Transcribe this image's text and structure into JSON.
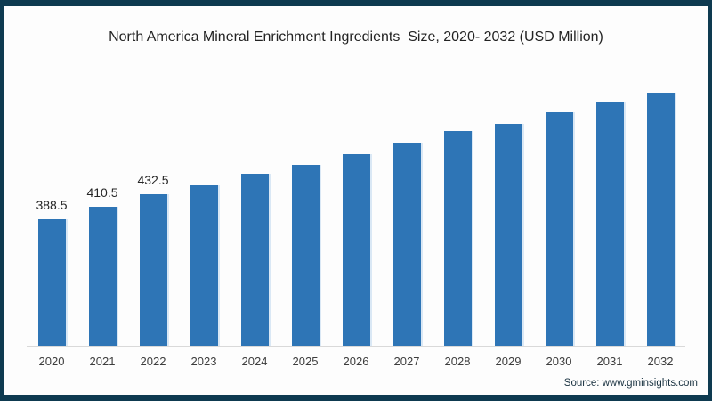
{
  "title": "North America Mineral Enrichment Ingredients  Size, 2020- 2032 (USD Million)",
  "source_note": "Source: www.gminsights.com",
  "colors": {
    "bar_fill": "#2e75b6",
    "bar_edge_highlight": "#bdd7ee",
    "frame_border": "#0e3a50",
    "axis_line": "#d9d9d9",
    "title_text": "#232323",
    "label_text": "#262626"
  },
  "chart_data": {
    "type": "bar",
    "title": "North America Mineral Enrichment Ingredients  Size, 2020- 2032 (USD Million)",
    "xlabel": "",
    "ylabel": "",
    "categories": [
      "2020",
      "2021",
      "2022",
      "2023",
      "2024",
      "2025",
      "2026",
      "2027",
      "2028",
      "2029",
      "2030",
      "2031",
      "2032"
    ],
    "values": [
      388.5,
      410.5,
      432.5,
      448.5,
      468.5,
      484.5,
      503.5,
      523.5,
      544.0,
      556.5,
      577.0,
      594.5,
      611.5
    ],
    "data_labels": [
      "388.5",
      "410.5",
      "432.5",
      "",
      "",
      "",
      "",
      "",
      "",
      "",
      "",
      "",
      ""
    ],
    "ylim": [
      165.4,
      650
    ],
    "y_axis_visible": false,
    "grid": false,
    "legend": false,
    "source": "Source: www.gminsights.com"
  }
}
